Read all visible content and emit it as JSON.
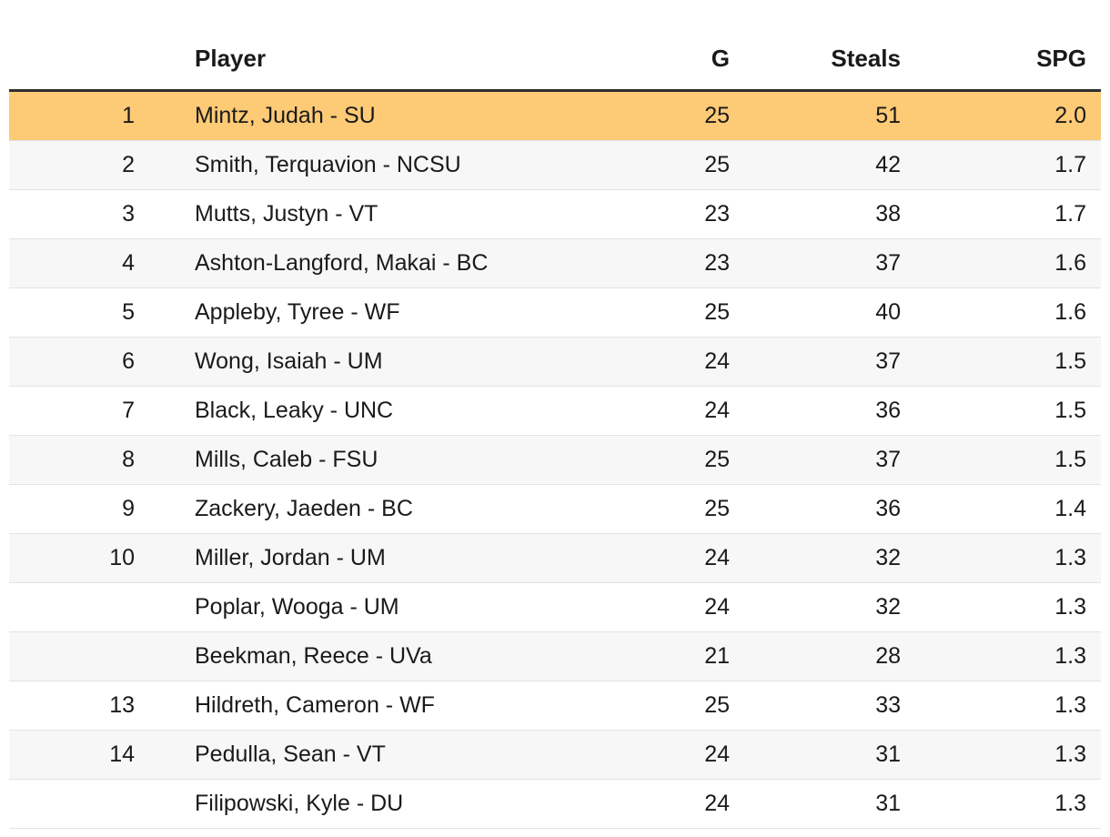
{
  "table": {
    "headers": {
      "rank": "",
      "player": "Player",
      "g": "G",
      "steals": "Steals",
      "spg": "SPG"
    },
    "highlight_color": "#fdca76",
    "rows": [
      {
        "rank": "1",
        "player": "Mintz, Judah - SU",
        "g": "25",
        "steals": "51",
        "spg": "2.0",
        "highlighted": true
      },
      {
        "rank": "2",
        "player": "Smith, Terquavion - NCSU",
        "g": "25",
        "steals": "42",
        "spg": "1.7"
      },
      {
        "rank": "3",
        "player": "Mutts, Justyn - VT",
        "g": "23",
        "steals": "38",
        "spg": "1.7"
      },
      {
        "rank": "4",
        "player": "Ashton-Langford, Makai - BC",
        "g": "23",
        "steals": "37",
        "spg": "1.6"
      },
      {
        "rank": "5",
        "player": "Appleby, Tyree - WF",
        "g": "25",
        "steals": "40",
        "spg": "1.6"
      },
      {
        "rank": "6",
        "player": "Wong, Isaiah - UM",
        "g": "24",
        "steals": "37",
        "spg": "1.5"
      },
      {
        "rank": "7",
        "player": "Black, Leaky - UNC",
        "g": "24",
        "steals": "36",
        "spg": "1.5"
      },
      {
        "rank": "8",
        "player": "Mills, Caleb - FSU",
        "g": "25",
        "steals": "37",
        "spg": "1.5"
      },
      {
        "rank": "9",
        "player": "Zackery, Jaeden - BC",
        "g": "25",
        "steals": "36",
        "spg": "1.4"
      },
      {
        "rank": "10",
        "player": "Miller, Jordan - UM",
        "g": "24",
        "steals": "32",
        "spg": "1.3"
      },
      {
        "rank": "",
        "player": "Poplar, Wooga - UM",
        "g": "24",
        "steals": "32",
        "spg": "1.3"
      },
      {
        "rank": "",
        "player": "Beekman, Reece - UVa",
        "g": "21",
        "steals": "28",
        "spg": "1.3"
      },
      {
        "rank": "13",
        "player": "Hildreth, Cameron - WF",
        "g": "25",
        "steals": "33",
        "spg": "1.3"
      },
      {
        "rank": "14",
        "player": "Pedulla, Sean - VT",
        "g": "24",
        "steals": "31",
        "spg": "1.3"
      },
      {
        "rank": "",
        "player": "Filipowski, Kyle - DU",
        "g": "24",
        "steals": "31",
        "spg": "1.3"
      }
    ]
  }
}
